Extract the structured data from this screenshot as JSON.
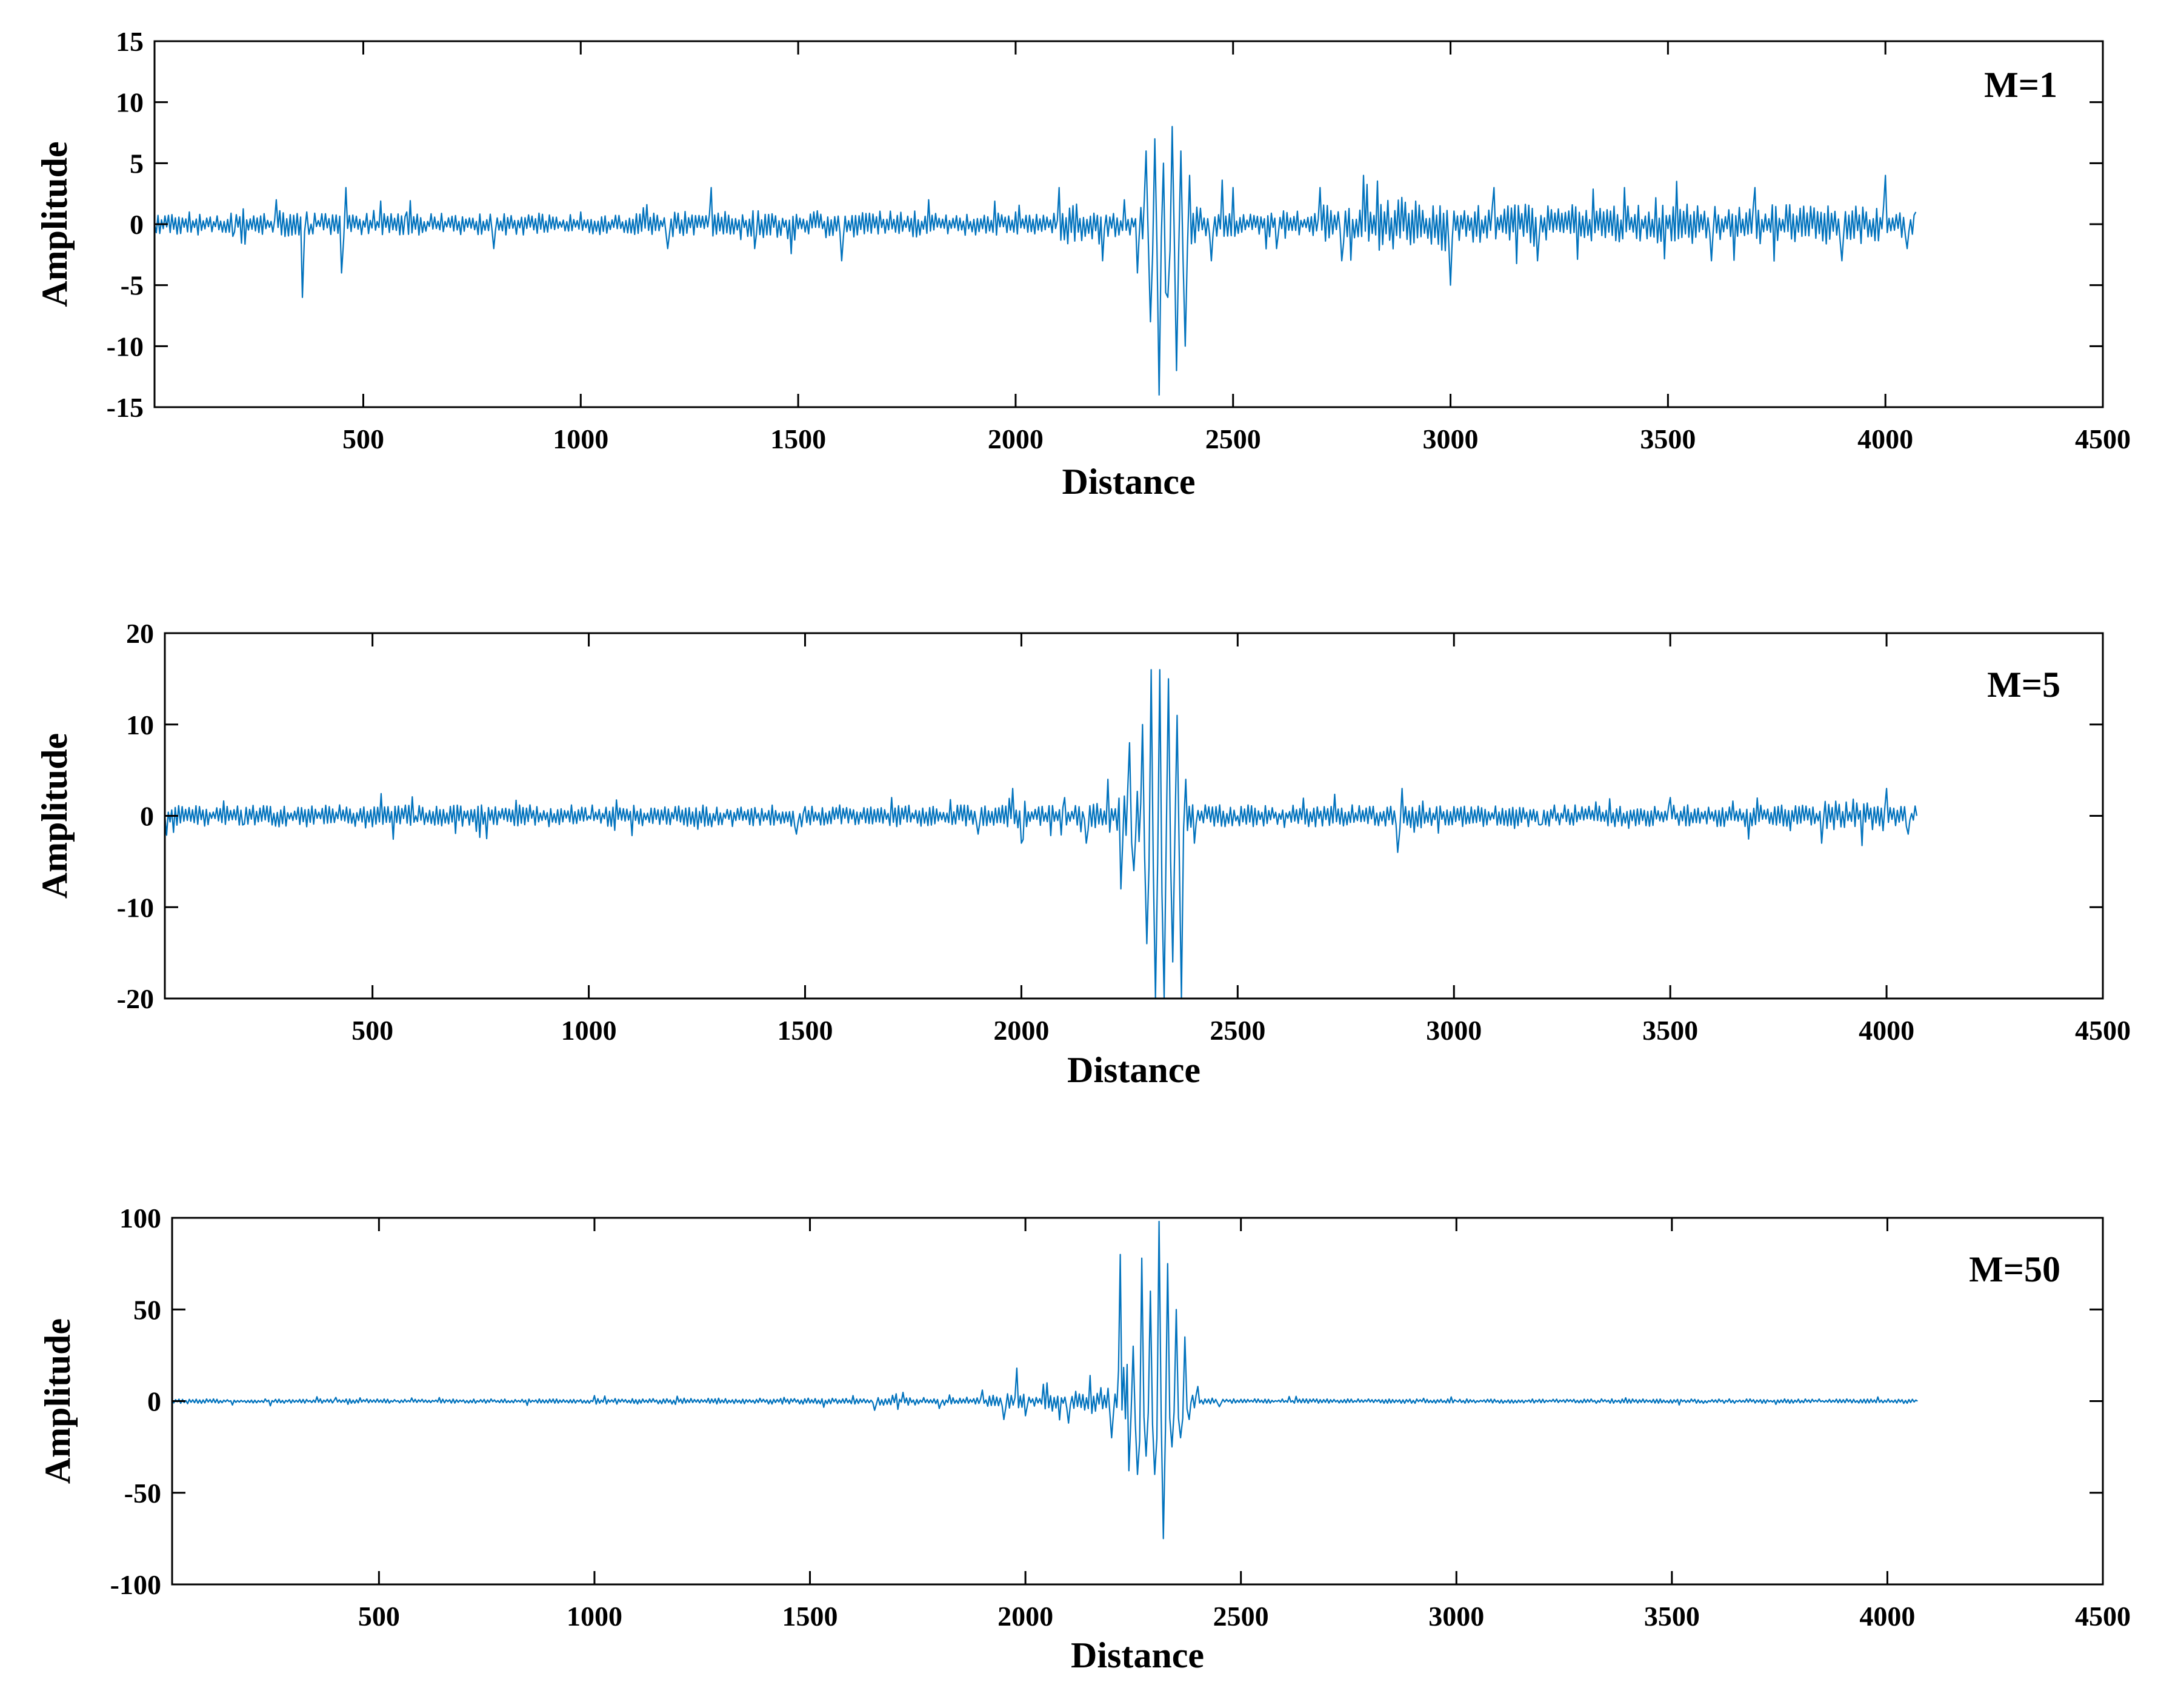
{
  "colors": {
    "series": "#0072BD",
    "axis": "#000000",
    "background": "#ffffff"
  },
  "chart_data": [
    {
      "type": "line",
      "panel_label": "M=1",
      "legend_placement": "top-right",
      "grid": false,
      "xlabel": "Distance",
      "ylabel": "Amplitude",
      "xlim": [
        20,
        4500
      ],
      "ylim": [
        -15,
        15
      ],
      "xticks": [
        500,
        1000,
        1500,
        2000,
        2500,
        3000,
        3500,
        4000,
        4500
      ],
      "yticks": [
        15,
        10,
        5,
        0,
        -5,
        -10,
        -15
      ],
      "series": [
        {
          "x": [
            20,
            100,
            200,
            300,
            360,
            370,
            380,
            450,
            460,
            600,
            800,
            1000,
            1200,
            1300,
            1400,
            1600,
            1800,
            2000,
            2100,
            2200,
            2250,
            2280,
            2300,
            2310,
            2320,
            2330,
            2340,
            2350,
            2360,
            2370,
            2380,
            2390,
            2400,
            2450,
            2500,
            2600,
            2700,
            2750,
            2800,
            3000,
            3100,
            3200,
            3400,
            3600,
            3700,
            3900,
            4000,
            4050,
            4070
          ],
          "y": [
            0,
            1,
            -1,
            2,
            -6,
            1,
            0,
            -4,
            3,
            1,
            -2,
            1,
            -2,
            3,
            -2,
            -3,
            2,
            1,
            3,
            -3,
            2,
            -4,
            6,
            -8,
            7,
            -14,
            5,
            -6,
            8,
            -12,
            6,
            -10,
            4,
            -3,
            3,
            -2,
            3,
            -3,
            4,
            -5,
            3,
            -3,
            3,
            -3,
            3,
            -3,
            4,
            -2,
            1
          ]
        }
      ]
    },
    {
      "type": "line",
      "panel_label": "M=5",
      "legend_placement": "top-right",
      "grid": false,
      "xlabel": "Distance",
      "ylabel": "Amplitude",
      "xlim": [
        20,
        4500
      ],
      "ylim": [
        -20,
        20
      ],
      "xticks": [
        500,
        1000,
        1500,
        2000,
        2500,
        3000,
        3500,
        4000,
        4500
      ],
      "yticks": [
        20,
        10,
        0,
        -10,
        -20
      ],
      "series": [
        {
          "x": [
            20,
            200,
            400,
            600,
            1000,
            1200,
            1480,
            1500,
            1700,
            1900,
            1980,
            2000,
            2100,
            2150,
            2200,
            2230,
            2250,
            2260,
            2280,
            2290,
            2300,
            2310,
            2320,
            2330,
            2340,
            2350,
            2360,
            2370,
            2380,
            2400,
            2450,
            2500,
            2700,
            2870,
            2880,
            3000,
            3200,
            3500,
            3850,
            4000,
            4050,
            4070
          ],
          "y": [
            0,
            -1,
            1,
            0,
            0,
            1,
            -2,
            1,
            2,
            -2,
            3,
            -3,
            2,
            -3,
            4,
            -8,
            8,
            -6,
            10,
            -14,
            16,
            -20,
            16,
            -20,
            15,
            -16,
            11,
            -20,
            4,
            -3,
            1,
            0,
            1,
            -4,
            3,
            1,
            -1,
            2,
            -3,
            3,
            -2,
            0
          ]
        }
      ]
    },
    {
      "type": "line",
      "panel_label": "M=50",
      "legend_placement": "top-right",
      "grid": false,
      "xlabel": "Distance",
      "ylabel": "Amplitude",
      "xlim": [
        20,
        4500
      ],
      "ylim": [
        -100,
        100
      ],
      "xticks": [
        500,
        1000,
        1500,
        2000,
        2500,
        3000,
        3500,
        4000,
        4500
      ],
      "yticks": [
        100,
        50,
        0,
        -50,
        -100
      ],
      "series": [
        {
          "x": [
            20,
            400,
            1000,
            1600,
            1650,
            1700,
            1800,
            1900,
            1950,
            1980,
            2000,
            2050,
            2100,
            2150,
            2200,
            2220,
            2240,
            2250,
            2260,
            2270,
            2280,
            2290,
            2300,
            2310,
            2320,
            2330,
            2340,
            2350,
            2360,
            2370,
            2380,
            2400,
            2450,
            2500,
            3000,
            4070
          ],
          "y": [
            0,
            2,
            3,
            3,
            -5,
            4,
            -4,
            6,
            -10,
            18,
            -8,
            10,
            -12,
            14,
            -20,
            80,
            -38,
            30,
            -40,
            78,
            -30,
            60,
            -40,
            98,
            -75,
            75,
            -25,
            50,
            -20,
            35,
            -10,
            8,
            -3,
            1,
            0,
            0
          ]
        }
      ]
    }
  ]
}
